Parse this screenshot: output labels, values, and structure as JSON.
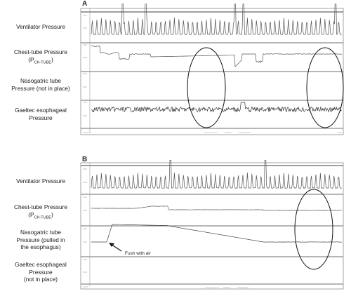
{
  "panel_a": {
    "letter": "A",
    "labels": {
      "ventilator_pressure": "Ventilator Pressure",
      "chest_tube_line1": "Chest-tube Pressure",
      "chest_tube_line2": "(P",
      "chest_tube_sub": "CH-TUBE",
      "chest_tube_close": ")",
      "nasogastric_line1": "Nasogatric tube",
      "nasogastric_line2": "Pressure (not in place)",
      "gaeltec_line1": "Gaeltec esophageal",
      "gaeltec_line2": "Pressure"
    }
  },
  "panel_b": {
    "letter": "B",
    "labels": {
      "ventilator_pressure": "Ventilator Pressure",
      "chest_tube_line1": "Chest-tube Pressure",
      "chest_tube_line2": "(P",
      "chest_tube_sub": "CH-TUBE",
      "chest_tube_close": ")",
      "nasogastric_line1": "Nasogatric tube",
      "nasogastric_line2": "Pressure (pulled in",
      "nasogastric_line3": "the esophagus)",
      "gaeltec_line1": "Gaeltec esophageal",
      "gaeltec_line2": "Pressure",
      "gaeltec_line3": "(not in place)"
    },
    "annotation": "Fush with air"
  }
}
